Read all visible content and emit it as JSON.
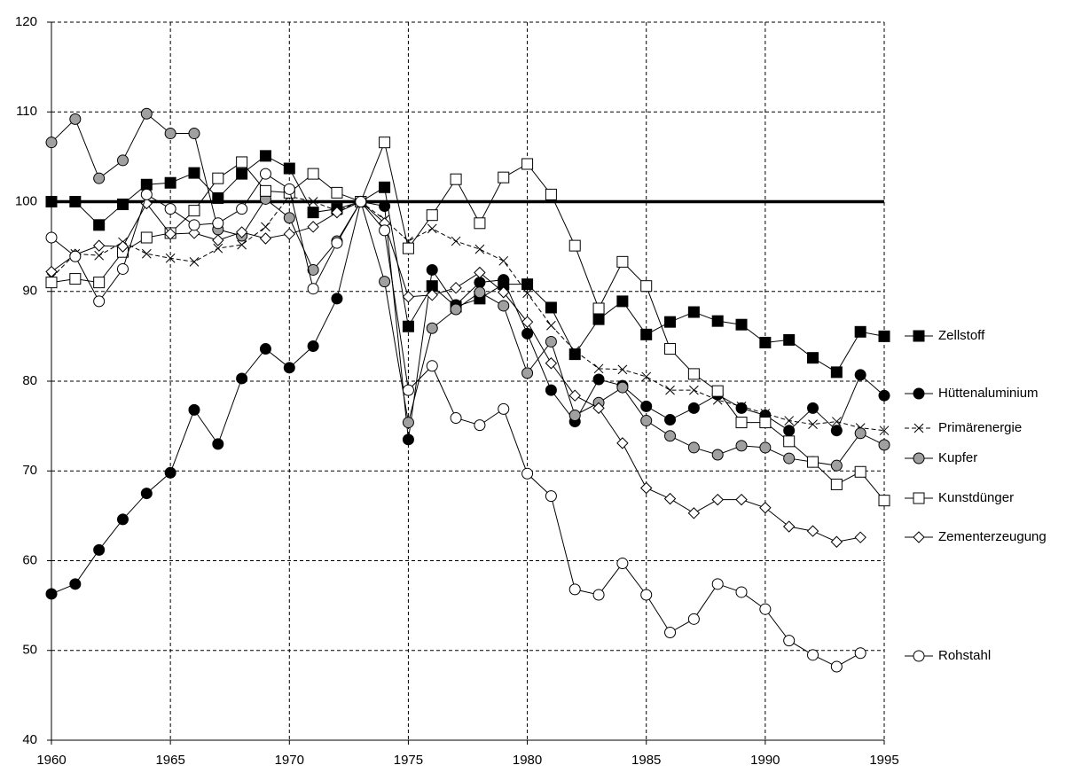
{
  "chart_data": {
    "type": "line",
    "x": [
      1960,
      1961,
      1962,
      1963,
      1964,
      1965,
      1966,
      1967,
      1968,
      1969,
      1970,
      1971,
      1972,
      1973,
      1974,
      1975,
      1976,
      1977,
      1978,
      1979,
      1980,
      1981,
      1982,
      1983,
      1984,
      1985,
      1986,
      1987,
      1988,
      1989,
      1990,
      1991,
      1992,
      1993,
      1994,
      1995
    ],
    "xlim": [
      1960,
      1995
    ],
    "xticks": [
      1960,
      1965,
      1970,
      1975,
      1980,
      1985,
      1990,
      1995
    ],
    "ylim": [
      40,
      120
    ],
    "yticks": [
      40,
      50,
      60,
      70,
      80,
      90,
      100,
      110,
      120
    ],
    "grid": true,
    "reference_line": 100,
    "legend": "right",
    "series": [
      {
        "name": "Zellstoff",
        "color": "#000000",
        "marker": "square",
        "marker_fill": "#000000",
        "dash": false,
        "values": [
          100,
          100.0,
          97.4,
          99.7,
          101.9,
          102.1,
          103.2,
          100.4,
          103.1,
          105.1,
          103.7,
          98.8,
          99.2,
          100,
          101.6,
          86.1,
          90.6,
          88.3,
          89.2,
          90.8,
          90.8,
          88.2,
          83.0,
          86.9,
          88.9,
          85.2,
          86.6,
          87.7,
          86.7,
          86.3,
          84.3,
          84.6,
          82.6,
          81.0,
          85.5,
          85.0
        ]
      },
      {
        "name": "Hüttenaluminium",
        "color": "#000000",
        "marker": "circle",
        "marker_fill": "#000000",
        "dash": false,
        "values": [
          56.3,
          57.4,
          61.2,
          64.6,
          67.5,
          69.8,
          76.8,
          73.0,
          80.3,
          83.6,
          81.5,
          83.9,
          89.2,
          100,
          99.5,
          73.5,
          92.4,
          88.5,
          91.0,
          91.3,
          85.3,
          79.0,
          75.5,
          80.2,
          79.5,
          77.2,
          75.7,
          77.0,
          78.5,
          77.0,
          76.2,
          74.5,
          77.0,
          74.5,
          80.7,
          78.4
        ]
      },
      {
        "name": "Primärenergie",
        "color": "#000000",
        "marker": "x",
        "marker_fill": "none",
        "dash": true,
        "values": [
          91.5,
          94.2,
          94.0,
          95.5,
          94.2,
          93.7,
          93.3,
          94.8,
          95.2,
          97.2,
          100.6,
          100.0,
          99.0,
          100,
          98.0,
          95.6,
          97.0,
          95.6,
          94.7,
          93.4,
          89.8,
          86.2,
          83.4,
          81.4,
          81.3,
          80.5,
          79.0,
          79.0,
          77.9,
          77.2,
          76.4,
          75.6,
          75.2,
          75.5,
          74.8,
          74.5
        ]
      },
      {
        "name": "Kupfer",
        "color": "#000000",
        "marker": "circle",
        "marker_fill": "#a0a0a0",
        "dash": false,
        "values": [
          106.6,
          109.2,
          102.6,
          104.6,
          109.8,
          107.6,
          107.6,
          96.9,
          96.2,
          100.3,
          98.2,
          92.4,
          95.6,
          100,
          91.1,
          75.4,
          85.9,
          88.0,
          89.9,
          88.4,
          80.9,
          84.4,
          76.2,
          77.6,
          79.3,
          75.6,
          73.9,
          72.6,
          71.8,
          72.8,
          72.6,
          71.4,
          71.0,
          70.6,
          74.2,
          72.9
        ]
      },
      {
        "name": "Kunstdünger",
        "color": "#000000",
        "marker": "square",
        "marker_fill": "#ffffff",
        "dash": false,
        "values": [
          91.0,
          91.4,
          91.0,
          94.4,
          96.0,
          96.5,
          99.0,
          102.6,
          104.4,
          101.2,
          101.0,
          103.1,
          101.0,
          100,
          106.6,
          94.8,
          98.5,
          102.5,
          97.6,
          102.7,
          104.2,
          100.8,
          95.1,
          88.1,
          93.3,
          90.6,
          83.6,
          80.8,
          78.9,
          75.4,
          75.4,
          73.3,
          71.0,
          68.5,
          69.9,
          66.7
        ]
      },
      {
        "name": "Zementerzeugung",
        "color": "#000000",
        "marker": "diamond",
        "marker_fill": "#ffffff",
        "dash": false,
        "values": [
          92.2,
          94.1,
          95.1,
          95.0,
          99.8,
          96.4,
          96.5,
          95.7,
          96.6,
          95.9,
          96.4,
          97.2,
          98.8,
          100,
          97.6,
          89.4,
          89.6,
          90.4,
          92.1,
          89.9,
          86.6,
          82.0,
          78.4,
          77.0,
          73.1,
          68.1,
          66.9,
          65.3,
          66.8,
          66.8,
          65.9,
          63.8,
          63.3,
          62.1,
          62.6,
          null
        ]
      },
      {
        "name": "Rohstahl",
        "color": "#000000",
        "marker": "circle",
        "marker_fill": "#ffffff",
        "dash": false,
        "values": [
          96.0,
          93.9,
          88.9,
          92.5,
          100.8,
          99.2,
          97.4,
          97.6,
          99.2,
          103.1,
          101.4,
          90.3,
          95.4,
          100,
          96.8,
          79.0,
          81.7,
          75.9,
          75.1,
          76.9,
          69.7,
          67.2,
          56.8,
          56.2,
          59.7,
          56.2,
          52.0,
          53.5,
          57.4,
          56.5,
          54.6,
          51.1,
          49.5,
          48.2,
          49.7,
          null
        ]
      }
    ]
  }
}
